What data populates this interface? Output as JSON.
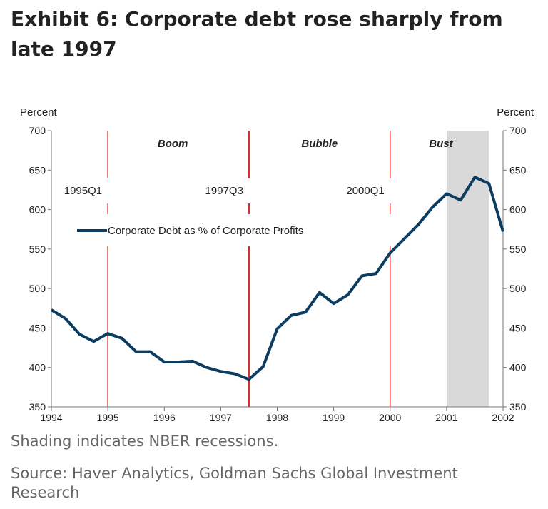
{
  "title": "Exhibit 6: Corporate debt rose sharply from late 1997",
  "note": "Shading indicates NBER recessions.",
  "source": "Source: Haver Analytics, Goldman Sachs Global Investment Research",
  "chart_data": {
    "type": "line",
    "ylabel_left": "Percent",
    "ylabel_right": "Percent",
    "xlim": [
      1994,
      2002
    ],
    "ylim": [
      350,
      700
    ],
    "x_ticks": [
      "1994",
      "1995",
      "1996",
      "1997",
      "1998",
      "1999",
      "2000",
      "2001",
      "2002"
    ],
    "y_ticks": [
      350,
      400,
      450,
      500,
      550,
      600,
      650,
      700
    ],
    "grid": false,
    "legend_position": "upper-left",
    "series": [
      {
        "name": "Corporate Debt as % of Corporate Profits",
        "color": "#0d3c61",
        "x": [
          1994,
          1994.25,
          1994.5,
          1994.75,
          1995,
          1995.25,
          1995.5,
          1995.75,
          1996,
          1996.25,
          1996.5,
          1996.75,
          1997,
          1997.25,
          1997.5,
          1997.75,
          1998,
          1998.25,
          1998.5,
          1998.75,
          1999,
          1999.25,
          1999.5,
          1999.75,
          2000,
          2000.25,
          2000.5,
          2000.75,
          2001,
          2001.25,
          2001.5,
          2001.75,
          2002
        ],
        "values": [
          473,
          462,
          442,
          433,
          443,
          437,
          420,
          420,
          407,
          407,
          408,
          400,
          395,
          392,
          385,
          401,
          449,
          466,
          470,
          495,
          481,
          492,
          516,
          519,
          545,
          563,
          581,
          603,
          620,
          612,
          641,
          633,
          572
        ]
      }
    ],
    "recession_shading": [
      [
        2001.0,
        2001.75
      ]
    ],
    "shading_color": "#d9d9d9",
    "markers": [
      {
        "x": 1995,
        "label": "1995Q1"
      },
      {
        "x": 1997.5,
        "label": "1997Q3"
      },
      {
        "x": 2000,
        "label": "2000Q1"
      }
    ],
    "marker_color": "#d2302c",
    "phases": [
      {
        "label": "Boom",
        "x": 1996.15
      },
      {
        "label": "Bubble",
        "x": 1998.75
      },
      {
        "label": "Bust",
        "x": 2000.9
      }
    ]
  }
}
